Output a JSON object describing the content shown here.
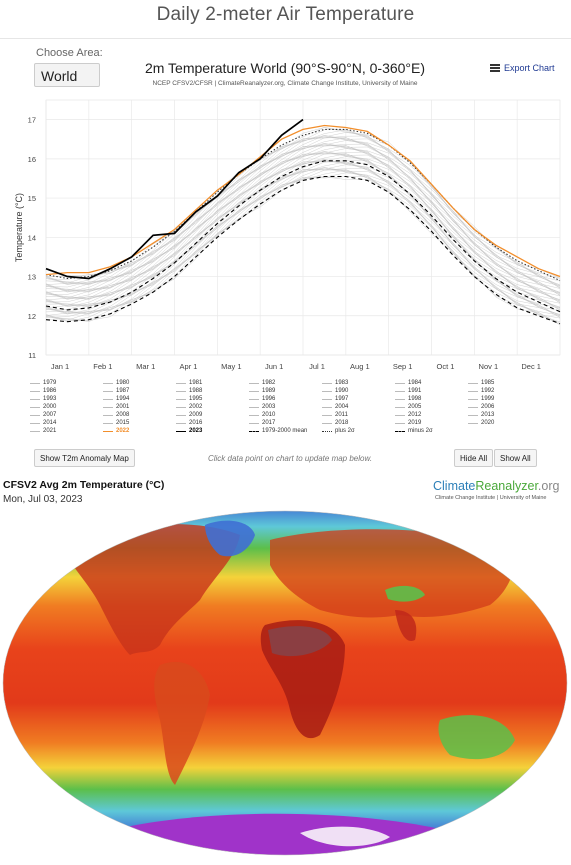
{
  "page": {
    "title": "Daily 2-meter Air Temperature",
    "choose_area_label": "Choose Area:",
    "area_value": "World",
    "export_label": "Export Chart",
    "show_anomaly_label": "Show T2m Anomaly Map",
    "hint": "Click data point on chart to update map below.",
    "hide_all_label": "Hide All",
    "show_all_label": "Show All"
  },
  "chart_data": {
    "type": "line",
    "title": "2m Temperature World (90°S-90°N, 0-360°E)",
    "subtitle": "NCEP CFSV2/CFSR | ClimateReanalyzer.org, Climate Change Institute, University of Maine",
    "ylabel": "Temperature (°C)",
    "ylim": [
      11,
      17.5
    ],
    "yticks": [
      "11",
      "12",
      "13",
      "14",
      "15",
      "16",
      "17"
    ],
    "xticks": [
      "Jan 1",
      "Feb 1",
      "Mar 1",
      "Apr 1",
      "May 1",
      "Jun 1",
      "Jul 1",
      "Aug 1",
      "Sep 1",
      "Oct 1",
      "Nov 1",
      "Dec 1"
    ],
    "grid": true,
    "x_month": [
      0.0,
      0.5,
      1.0,
      1.5,
      2.0,
      2.5,
      3.0,
      3.5,
      4.0,
      4.5,
      5.0,
      5.5,
      6.0,
      6.5,
      7.0,
      7.5,
      8.0,
      8.5,
      9.0,
      9.5,
      10.0,
      10.5,
      11.0,
      11.5,
      12.0
    ],
    "series": [
      {
        "name": "1979-2000 mean",
        "color": "#000000",
        "style": "dashed",
        "values": [
          12.25,
          12.15,
          12.2,
          12.35,
          12.6,
          12.95,
          13.35,
          13.85,
          14.35,
          14.8,
          15.2,
          15.55,
          15.8,
          15.95,
          15.95,
          15.85,
          15.55,
          15.1,
          14.55,
          13.95,
          13.4,
          12.95,
          12.6,
          12.35,
          12.1
        ]
      },
      {
        "name": "plus 2σ",
        "color": "#333333",
        "style": "dotted",
        "values": [
          13.05,
          12.95,
          13.0,
          13.15,
          13.4,
          13.75,
          14.15,
          14.65,
          15.15,
          15.6,
          16.0,
          16.35,
          16.6,
          16.75,
          16.75,
          16.65,
          16.35,
          15.9,
          15.35,
          14.75,
          14.2,
          13.75,
          13.4,
          13.15,
          12.9
        ]
      },
      {
        "name": "minus 2σ",
        "color": "#000000",
        "style": "dashed",
        "values": [
          11.9,
          11.85,
          11.9,
          12.05,
          12.3,
          12.6,
          13.0,
          13.5,
          14.0,
          14.45,
          14.85,
          15.2,
          15.45,
          15.55,
          15.55,
          15.45,
          15.15,
          14.7,
          14.15,
          13.55,
          13.0,
          12.55,
          12.2,
          12.0,
          11.8
        ]
      },
      {
        "name": "2022",
        "color": "#f28e2b",
        "style": "solid",
        "values": [
          13.05,
          13.1,
          13.1,
          13.25,
          13.5,
          13.85,
          14.2,
          14.7,
          15.2,
          15.6,
          16.05,
          16.5,
          16.75,
          16.85,
          16.8,
          16.7,
          16.35,
          15.95,
          15.35,
          14.75,
          14.2,
          13.8,
          13.5,
          13.2,
          13.0
        ]
      },
      {
        "name": "2023",
        "color": "#000000",
        "style": "solid",
        "values": [
          13.2,
          13.0,
          12.95,
          13.2,
          13.5,
          14.05,
          14.1,
          14.65,
          15.05,
          15.65,
          16.0,
          16.6,
          17.0,
          null,
          null,
          null,
          null,
          null,
          null,
          null,
          null,
          null,
          null,
          null,
          null
        ]
      }
    ]
  },
  "legend": {
    "years": [
      "1979",
      "1980",
      "1981",
      "1982",
      "1983",
      "1984",
      "1985",
      "1986",
      "1987",
      "1988",
      "1989",
      "1990",
      "1991",
      "1992",
      "1993",
      "1994",
      "1995",
      "1996",
      "1997",
      "1998",
      "1999",
      "2000",
      "2001",
      "2002",
      "2003",
      "2004",
      "2005",
      "2006",
      "2007",
      "2008",
      "2009",
      "2010",
      "2011",
      "2012",
      "2013",
      "2014",
      "2015",
      "2016",
      "2017",
      "2018",
      "2019",
      "2020",
      "2021",
      "2022",
      "2023",
      "1979-2000 mean",
      "plus 2σ",
      "minus 2σ"
    ],
    "highlight": {
      "2022": "#f28e2b",
      "2023": "#000000"
    }
  },
  "map": {
    "title": "CFSV2 Avg 2m Temperature (°C)",
    "date": "Mon, Jul 03, 2023",
    "logo_main": "Climate",
    "logo_accent": "Reanalyzer",
    "logo_suffix": ".org",
    "logo_sub": "Climate Change Institute | University of Maine",
    "colors": {
      "hot": "#b22418",
      "warm": "#e8431b",
      "orange": "#f07c22",
      "yellow": "#f4d23a",
      "green": "#5cbf4a",
      "cyan": "#5ec8d8",
      "blue": "#3f6fd4",
      "purple": "#a033c9",
      "ice": "#f0e0f5"
    }
  }
}
